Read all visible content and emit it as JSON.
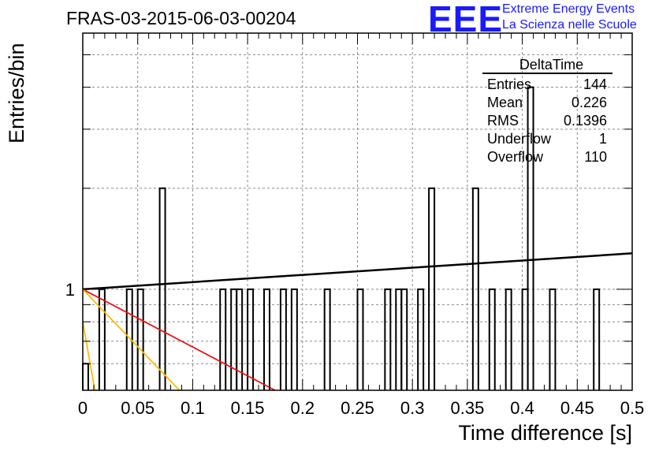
{
  "title": "FRAS-03-2015-06-03-00204",
  "logo": {
    "mark": "EEE",
    "line1": "Extreme Energy Events",
    "line2": "La Scienza nelle Scuole"
  },
  "chart_data": {
    "type": "histogram",
    "xlabel": "Time difference [s]",
    "ylabel": "Entries/bin",
    "xlim": [
      0,
      0.5
    ],
    "x_ticks": [
      "0",
      "0.05",
      "0.1",
      "0.15",
      "0.2",
      "0.25",
      "0.3",
      "0.35",
      "0.4",
      "0.45",
      "0.5"
    ],
    "y_tick_labels": [
      {
        "value": 1,
        "label": "1"
      }
    ],
    "y_scale": "log",
    "grid": true,
    "bin_width": 0.005,
    "bins": [
      {
        "x": 0.0,
        "count": 0.6
      },
      {
        "x": 0.015,
        "count": 1
      },
      {
        "x": 0.04,
        "count": 1
      },
      {
        "x": 0.05,
        "count": 1
      },
      {
        "x": 0.07,
        "count": 2
      },
      {
        "x": 0.125,
        "count": 1
      },
      {
        "x": 0.135,
        "count": 1
      },
      {
        "x": 0.14,
        "count": 1
      },
      {
        "x": 0.15,
        "count": 1
      },
      {
        "x": 0.165,
        "count": 1
      },
      {
        "x": 0.18,
        "count": 1
      },
      {
        "x": 0.19,
        "count": 1
      },
      {
        "x": 0.22,
        "count": 1
      },
      {
        "x": 0.25,
        "count": 1
      },
      {
        "x": 0.275,
        "count": 1
      },
      {
        "x": 0.285,
        "count": 1
      },
      {
        "x": 0.29,
        "count": 1
      },
      {
        "x": 0.305,
        "count": 1
      },
      {
        "x": 0.315,
        "count": 2
      },
      {
        "x": 0.355,
        "count": 2
      },
      {
        "x": 0.37,
        "count": 1
      },
      {
        "x": 0.385,
        "count": 1
      },
      {
        "x": 0.4,
        "count": 1
      },
      {
        "x": 0.405,
        "count": 4
      },
      {
        "x": 0.425,
        "count": 1
      },
      {
        "x": 0.465,
        "count": 1
      }
    ],
    "fits": [
      {
        "color": "#000000",
        "x": [
          0,
          0.5
        ],
        "y": [
          1,
          1.28
        ]
      },
      {
        "color": "#ee1111",
        "x": [
          0,
          0.175
        ],
        "y": [
          1,
          0.5
        ]
      },
      {
        "color": "#ffbb00",
        "x": [
          0,
          0.088
        ],
        "y": [
          1,
          0.5
        ]
      },
      {
        "color": "#ffbb00",
        "x": [
          0,
          0.011
        ],
        "y": [
          0.8,
          0.5
        ]
      }
    ],
    "stats": {
      "name": "DeltaTime",
      "rows": [
        {
          "label": "Entries",
          "value": "144"
        },
        {
          "label": "Mean",
          "value": "0.226"
        },
        {
          "label": "RMS",
          "value": "0.1396"
        },
        {
          "label": "Underflow",
          "value": "1"
        },
        {
          "label": "Overflow",
          "value": "110"
        }
      ]
    }
  }
}
